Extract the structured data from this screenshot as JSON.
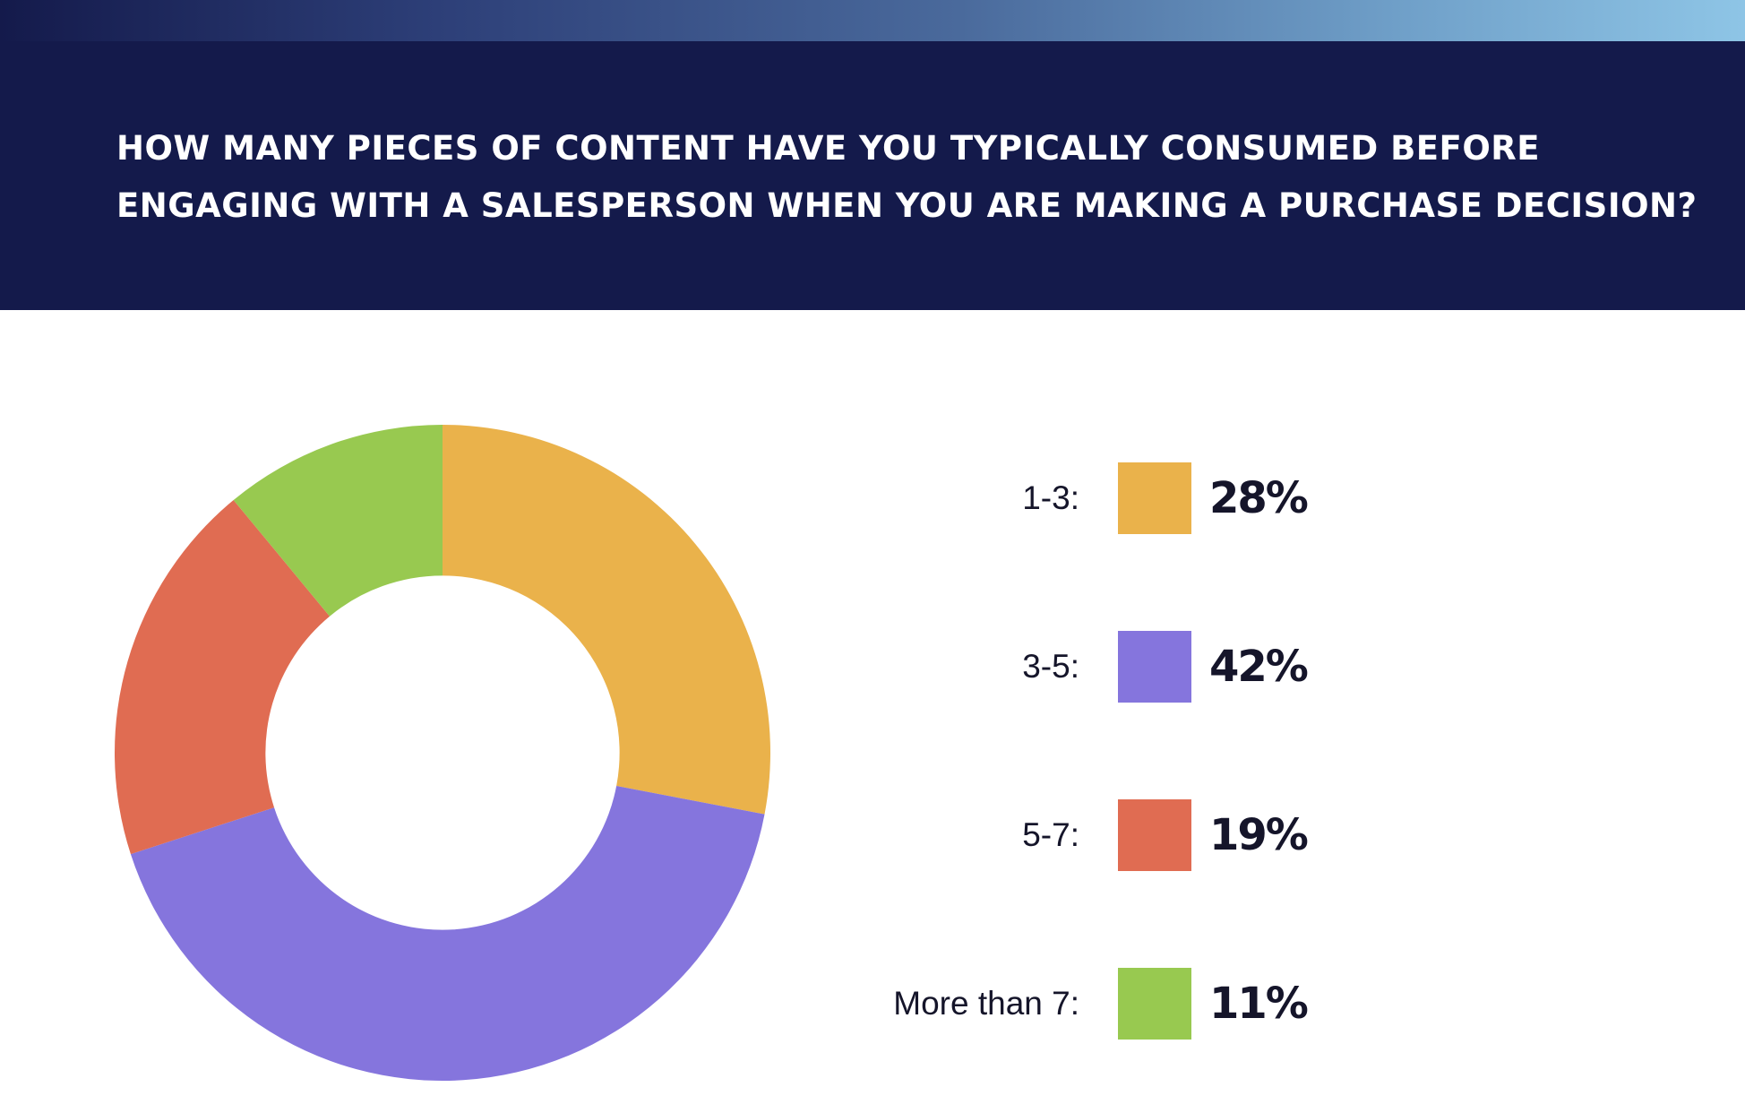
{
  "header": {
    "title_line1": "How many pieces of content have you typically consumed before",
    "title_line2": "engaging with a salesperson when you are making a purchase decision?",
    "background_color": "#141a4b"
  },
  "chart_data": {
    "type": "pie",
    "variant": "donut",
    "title": "How many pieces of content have you typically consumed before engaging with a salesperson when you are making a purchase decision?",
    "categories": [
      "1-3:",
      "3-5:",
      "5-7:",
      "More than 7:"
    ],
    "values": [
      28,
      42,
      19,
      11
    ],
    "value_labels": [
      "28%",
      "42%",
      "19%",
      "11%"
    ],
    "colors": [
      "#eab24b",
      "#8575dd",
      "#e06c52",
      "#98c950"
    ],
    "legend_position": "right",
    "start_angle_deg": 0,
    "direction": "clockwise",
    "hole_ratio": 0.54
  }
}
